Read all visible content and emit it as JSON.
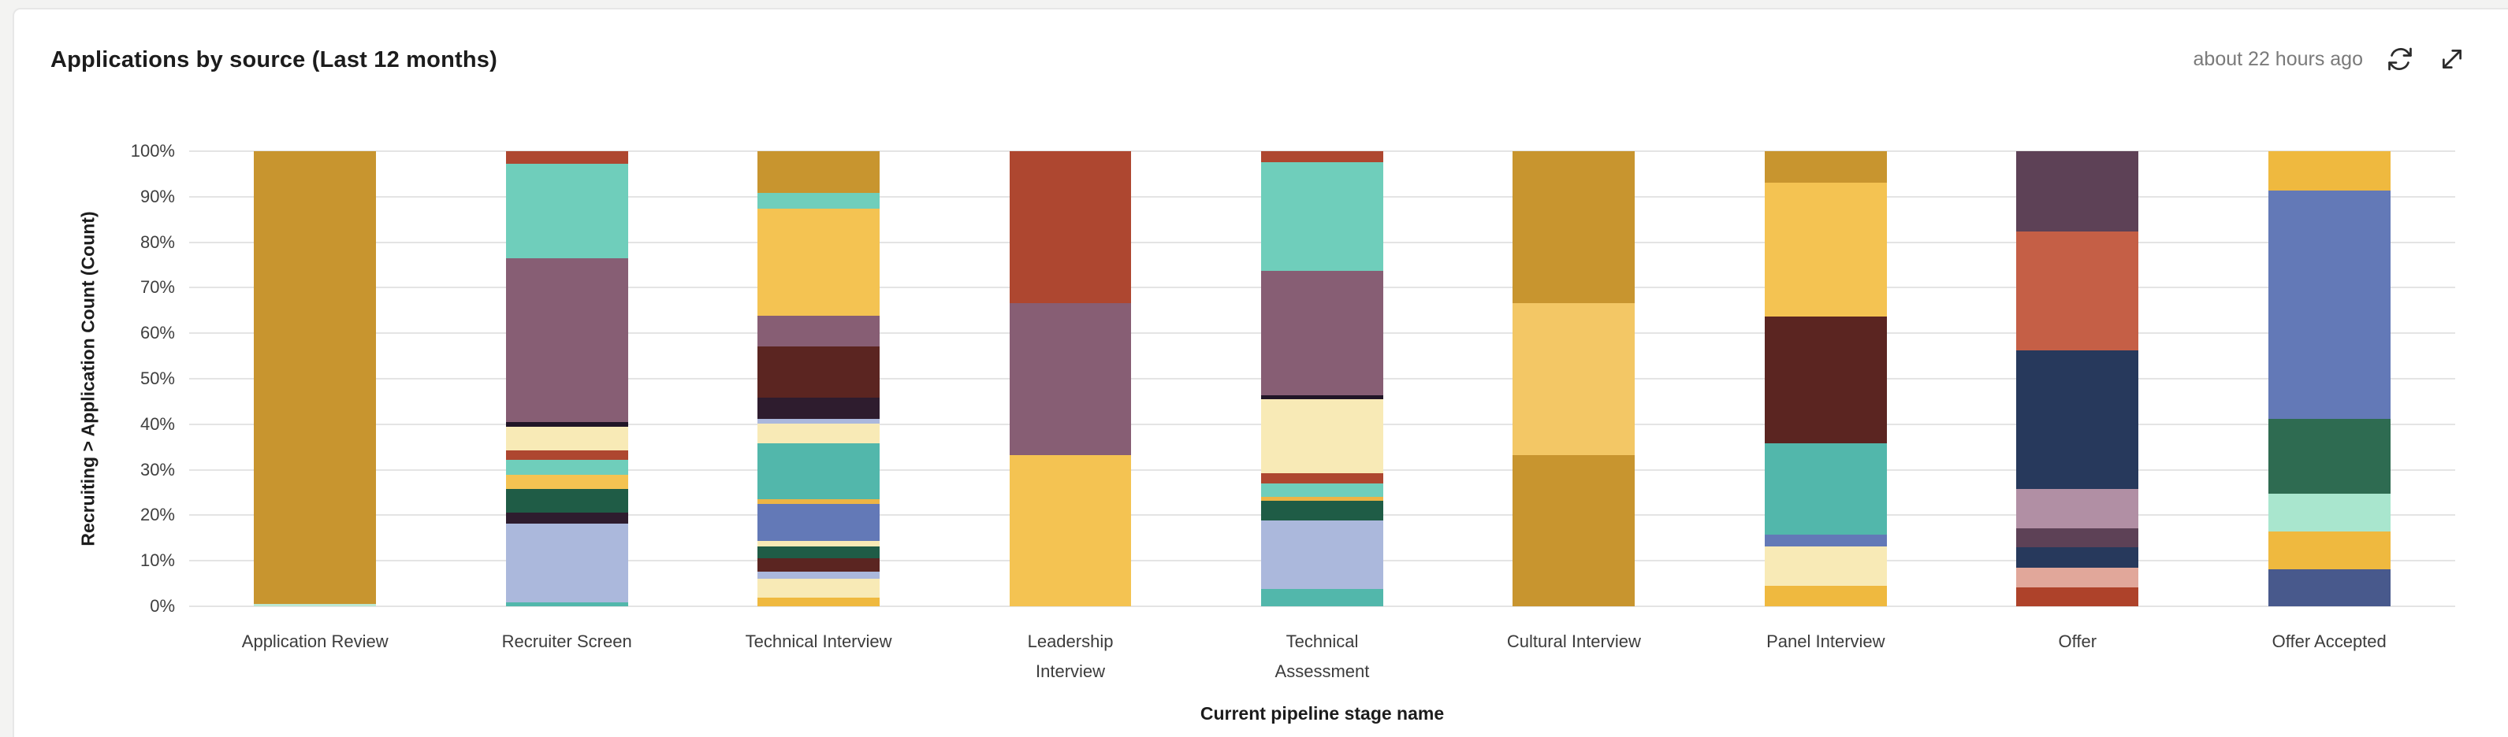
{
  "header": {
    "title": "Applications by source (Last 12 months)",
    "last_refreshed": "about 22 hours ago",
    "refresh_icon": "refresh-icon",
    "expand_icon": "expand-icon"
  },
  "chart_data": {
    "type": "bar",
    "subtype": "stacked_100_percent",
    "title": "Applications by source (Last 12 months)",
    "xlabel": "Current pipeline stage name",
    "ylabel": "Recruiting > Application Count (Count)",
    "ylim": [
      0,
      100
    ],
    "values_are_percent": true,
    "grid": true,
    "grid_color": "#E4E4E4",
    "legend_position": "none",
    "y_ticks": [
      "0%",
      "10%",
      "20%",
      "30%",
      "40%",
      "50%",
      "60%",
      "70%",
      "80%",
      "90%",
      "100%"
    ],
    "categories": [
      "Application Review",
      "Recruiter Screen",
      "Technical Interview",
      "Leadership\nInterview",
      "Technical\nAssessment",
      "Cultural Interview",
      "Panel Interview",
      "Offer",
      "Offer Accepted"
    ],
    "bars": [
      {
        "category": "Application Review",
        "segments_top_to_bottom": [
          {
            "color": "#C8952F",
            "value": 99.5
          },
          {
            "color": "#BCE8D3",
            "value": 0.5
          }
        ]
      },
      {
        "category": "Recruiter Screen",
        "segments_top_to_bottom": [
          {
            "color": "#AE4730",
            "value": 2.8
          },
          {
            "color": "#6FCEBB",
            "value": 20.7
          },
          {
            "color": "#875E74",
            "value": 36.1
          },
          {
            "color": "#211627",
            "value": 0.9
          },
          {
            "color": "#F8EAB6",
            "value": 5.2
          },
          {
            "color": "#AE4730",
            "value": 2.2
          },
          {
            "color": "#6FCEBB",
            "value": 3.2
          },
          {
            "color": "#F4C352",
            "value": 3.1
          },
          {
            "color": "#1F5C46",
            "value": 5.2
          },
          {
            "color": "#2E1C2E",
            "value": 2.5
          },
          {
            "color": "#ABB8DC",
            "value": 17.3
          },
          {
            "color": "#52B7AB",
            "value": 0.8
          }
        ]
      },
      {
        "category": "Technical Interview",
        "segments_top_to_bottom": [
          {
            "color": "#C8952F",
            "value": 9.2
          },
          {
            "color": "#6FCEBB",
            "value": 3.5
          },
          {
            "color": "#F4C352",
            "value": 23.5
          },
          {
            "color": "#875E74",
            "value": 6.7
          },
          {
            "color": "#5B2521",
            "value": 11.2
          },
          {
            "color": "#2E1C2E",
            "value": 4.7
          },
          {
            "color": "#ABB8DC",
            "value": 1.1
          },
          {
            "color": "#F8EAB6",
            "value": 4.3
          },
          {
            "color": "#52B7AB",
            "value": 12.3
          },
          {
            "color": "#EDB445",
            "value": 1.0
          },
          {
            "color": "#6379B7",
            "value": 8.1
          },
          {
            "color": "#F8EAB6",
            "value": 1.2
          },
          {
            "color": "#1F5C46",
            "value": 2.7
          },
          {
            "color": "#5B2521",
            "value": 2.9
          },
          {
            "color": "#ABB8DC",
            "value": 1.5
          },
          {
            "color": "#F8EAB6",
            "value": 4.3
          },
          {
            "color": "#EFB93F",
            "value": 1.8
          }
        ]
      },
      {
        "category": "Leadership\nInterview",
        "segments_top_to_bottom": [
          {
            "color": "#AE4730",
            "value": 33.4
          },
          {
            "color": "#875E74",
            "value": 33.3
          },
          {
            "color": "#F4C352",
            "value": 33.3
          }
        ]
      },
      {
        "category": "Technical\nAssessment",
        "segments_top_to_bottom": [
          {
            "color": "#AE4730",
            "value": 2.4
          },
          {
            "color": "#6FCEBB",
            "value": 23.9
          },
          {
            "color": "#875E74",
            "value": 27.4
          },
          {
            "color": "#211627",
            "value": 0.8
          },
          {
            "color": "#F8EAB6",
            "value": 16.2
          },
          {
            "color": "#AE4730",
            "value": 2.3
          },
          {
            "color": "#6FCEBB",
            "value": 3.0
          },
          {
            "color": "#EDB445",
            "value": 0.8
          },
          {
            "color": "#1F5C46",
            "value": 4.4
          },
          {
            "color": "#ABB8DC",
            "value": 15.0
          },
          {
            "color": "#52B7AB",
            "value": 3.8
          }
        ]
      },
      {
        "category": "Cultural Interview",
        "segments_top_to_bottom": [
          {
            "color": "#C8952F",
            "value": 33.4
          },
          {
            "color": "#F3C765",
            "value": 33.3
          },
          {
            "color": "#C8952F",
            "value": 33.3
          }
        ]
      },
      {
        "category": "Panel Interview",
        "segments_top_to_bottom": [
          {
            "color": "#C8952F",
            "value": 7.0
          },
          {
            "color": "#F4C352",
            "value": 29.4
          },
          {
            "color": "#5B2521",
            "value": 27.8
          },
          {
            "color": "#52B7AB",
            "value": 20.1
          },
          {
            "color": "#6379B7",
            "value": 2.5
          },
          {
            "color": "#F8EAB6",
            "value": 8.7
          },
          {
            "color": "#EFB93F",
            "value": 4.5
          }
        ]
      },
      {
        "category": "Offer",
        "segments_top_to_bottom": [
          {
            "color": "#5D4156",
            "value": 17.6
          },
          {
            "color": "#C55F46",
            "value": 26.1
          },
          {
            "color": "#27395C",
            "value": 30.5
          },
          {
            "color": "#B18FA4",
            "value": 8.7
          },
          {
            "color": "#5D4156",
            "value": 4.2
          },
          {
            "color": "#27395C",
            "value": 4.5
          },
          {
            "color": "#E1A79A",
            "value": 4.2
          },
          {
            "color": "#AE422A",
            "value": 4.2
          }
        ]
      },
      {
        "category": "Offer Accepted",
        "segments_top_to_bottom": [
          {
            "color": "#EFB93F",
            "value": 8.6
          },
          {
            "color": "#6379B7",
            "value": 50.2
          },
          {
            "color": "#2E6B51",
            "value": 16.4
          },
          {
            "color": "#A9E6CE",
            "value": 8.3
          },
          {
            "color": "#EFB93F",
            "value": 8.3
          },
          {
            "color": "#48598C",
            "value": 8.2
          }
        ]
      }
    ]
  }
}
